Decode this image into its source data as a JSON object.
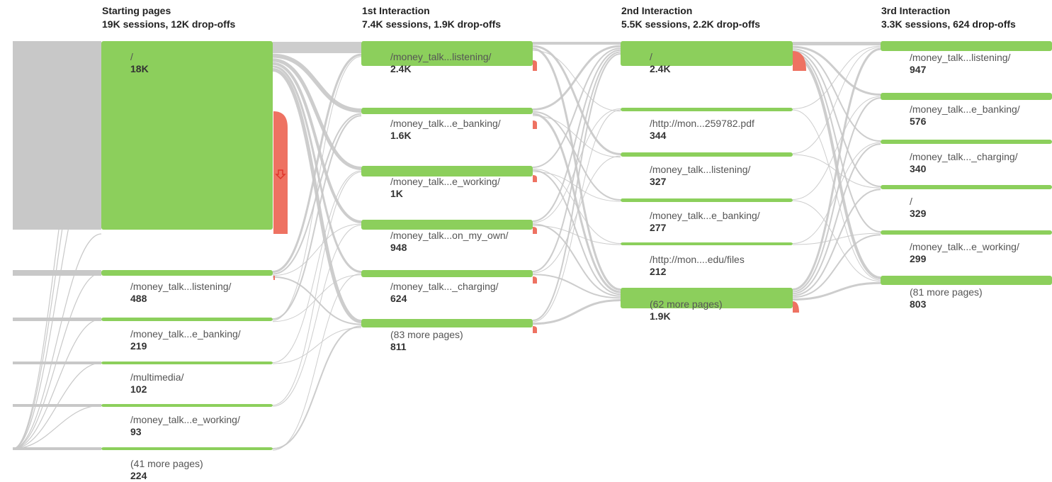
{
  "colors": {
    "node": "#8ccf5c",
    "dropoff": "#ee7262",
    "flow": "#c8c8c8",
    "dropoff_arrow": "#e0362c"
  },
  "columns": [
    {
      "title": "Starting pages",
      "subtitle": "19K sessions, 12K drop-offs",
      "nodes": [
        {
          "page": "/",
          "value": "18K",
          "sessions": 18000,
          "dropoff": 12000
        },
        {
          "page": "/money_talk...listening/",
          "value": "488",
          "sessions": 488,
          "dropoff": 0
        },
        {
          "page": "/money_talk...e_banking/",
          "value": "219",
          "sessions": 219,
          "dropoff": 0
        },
        {
          "page": "/multimedia/",
          "value": "102",
          "sessions": 102,
          "dropoff": 0
        },
        {
          "page": "/money_talk...e_working/",
          "value": "93",
          "sessions": 93,
          "dropoff": 0
        },
        {
          "page": "(41 more pages)",
          "value": "224",
          "sessions": 224,
          "dropoff": 0
        }
      ]
    },
    {
      "title": "1st Interaction",
      "subtitle": "7.4K sessions, 1.9K drop-offs",
      "nodes": [
        {
          "page": "/money_talk...listening/",
          "value": "2.4K",
          "sessions": 2400,
          "dropoff": 0
        },
        {
          "page": "/money_talk...e_banking/",
          "value": "1.6K",
          "sessions": 1600,
          "dropoff": 0
        },
        {
          "page": "/money_talk...e_working/",
          "value": "1K",
          "sessions": 1000,
          "dropoff": 0
        },
        {
          "page": "/money_talk...on_my_own/",
          "value": "948",
          "sessions": 948,
          "dropoff": 0
        },
        {
          "page": "/money_talk..._charging/",
          "value": "624",
          "sessions": 624,
          "dropoff": 0
        },
        {
          "page": "(83 more pages)",
          "value": "811",
          "sessions": 811,
          "dropoff": 0
        }
      ]
    },
    {
      "title": "2nd Interaction",
      "subtitle": "5.5K sessions, 2.2K drop-offs",
      "nodes": [
        {
          "page": "/",
          "value": "2.4K",
          "sessions": 2400,
          "dropoff": 0
        },
        {
          "page": "/http://mon...259782.pdf",
          "value": "344",
          "sessions": 344,
          "dropoff": 0
        },
        {
          "page": "/money_talk...listening/",
          "value": "327",
          "sessions": 327,
          "dropoff": 0
        },
        {
          "page": "/money_talk...e_banking/",
          "value": "277",
          "sessions": 277,
          "dropoff": 0
        },
        {
          "page": "/http://mon....edu/files",
          "value": "212",
          "sessions": 212,
          "dropoff": 0
        },
        {
          "page": "(62 more pages)",
          "value": "1.9K",
          "sessions": 1900,
          "dropoff": 0
        }
      ]
    },
    {
      "title": "3rd Interaction",
      "subtitle": "3.3K sessions, 624 drop-offs",
      "nodes": [
        {
          "page": "/money_talk...listening/",
          "value": "947",
          "sessions": 947,
          "dropoff": 0
        },
        {
          "page": "/money_talk...e_banking/",
          "value": "576",
          "sessions": 576,
          "dropoff": 0
        },
        {
          "page": "/money_talk..._charging/",
          "value": "340",
          "sessions": 340,
          "dropoff": 0
        },
        {
          "page": "/",
          "value": "329",
          "sessions": 329,
          "dropoff": 0
        },
        {
          "page": "/money_talk...e_working/",
          "value": "299",
          "sessions": 299,
          "dropoff": 0
        },
        {
          "page": "(81 more pages)",
          "value": "803",
          "sessions": 803,
          "dropoff": 0
        }
      ]
    }
  ]
}
